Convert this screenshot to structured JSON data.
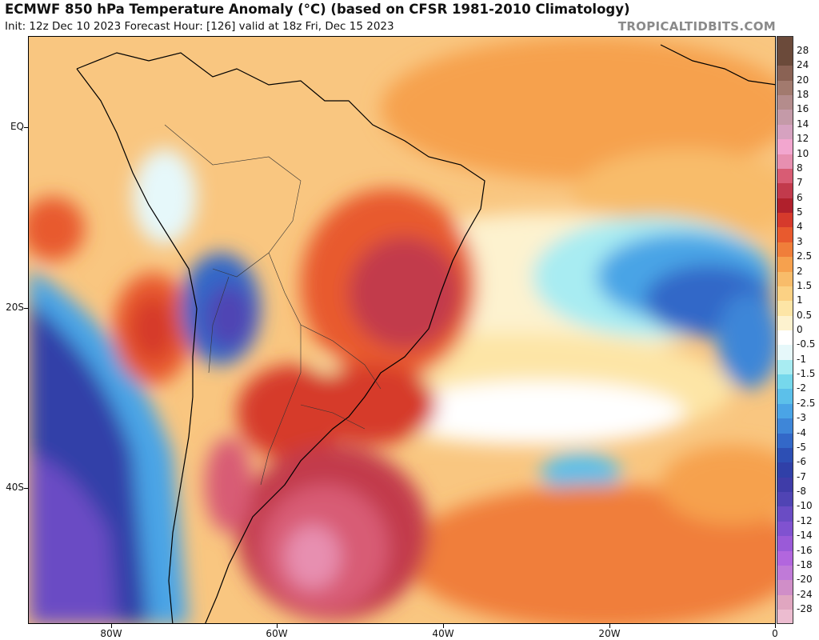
{
  "header": {
    "title": "ECMWF 850 hPa Temperature Anomaly (°C) (based on CFSR 1981-2010 Climatology)",
    "subtitle": "Init: 12z Dec 10 2023   Forecast Hour: [126]   valid at 18z Fri, Dec 15 2023",
    "watermark": "TROPICALTIDBITS.COM"
  },
  "axes": {
    "lat_labels": [
      "EQ",
      "20S",
      "40S"
    ],
    "lon_labels": [
      "80W",
      "60W",
      "40W",
      "20W",
      "0"
    ]
  },
  "colorbar": {
    "levels": [
      "28",
      "24",
      "20",
      "18",
      "16",
      "14",
      "12",
      "10",
      "8",
      "7",
      "6",
      "5",
      "4",
      "3",
      "2.5",
      "2",
      "1.5",
      "1",
      "0.5",
      "0",
      "-0.5",
      "-1",
      "-1.5",
      "-2",
      "-2.5",
      "-3",
      "-4",
      "-5",
      "-6",
      "-7",
      "-8",
      "-10",
      "-12",
      "-14",
      "-16",
      "-18",
      "-20",
      "-24",
      "-28"
    ],
    "colors": [
      "#6b4a3a",
      "#8a6254",
      "#a27a6e",
      "#b48c8c",
      "#c49aa8",
      "#d6a2c0",
      "#f2a6cf",
      "#e78fb0",
      "#d85c74",
      "#c23a4c",
      "#b0202c",
      "#d63a2c",
      "#e85a2e",
      "#f07e3a",
      "#f6a14e",
      "#f8bc6a",
      "#fbd184",
      "#fde5a6",
      "#fdf2cf",
      "#ffffff",
      "#e6f8fa",
      "#a8ecf2",
      "#76d8ec",
      "#5cc0ea",
      "#4aa4e6",
      "#3e86d8",
      "#3368c8",
      "#2d4fb4",
      "#3040a8",
      "#3f3ca8",
      "#5044b4",
      "#6a4cc4",
      "#8052d0",
      "#9a5ad8",
      "#b266de",
      "#c07ad8",
      "#d08ec8",
      "#e0a6c0",
      "#ecbcd0"
    ]
  }
}
